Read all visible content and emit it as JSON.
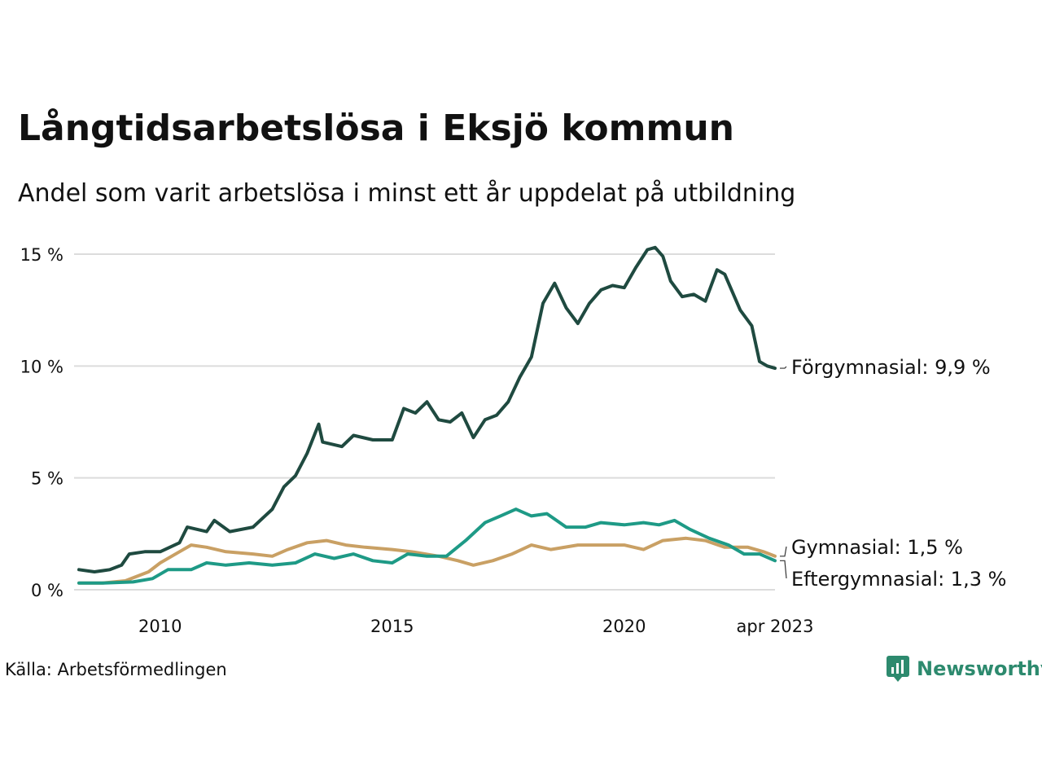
{
  "title": "Långtidsarbetslösa i Eksjö kommun",
  "subtitle": "Andel som varit arbetslösa i minst ett år uppdelat på utbildning",
  "source": "Källa: Arbetsförmedlingen",
  "brand": {
    "name": "Newsworthy",
    "icon": "newsworthy-logo-icon",
    "color": "#2d8a6e"
  },
  "chart_data": {
    "type": "line",
    "x_range": [
      "2008-04",
      "2023-04"
    ],
    "ylim": [
      0,
      15
    ],
    "grid": true,
    "y_ticks": [
      {
        "value": 0,
        "label": "0 %"
      },
      {
        "value": 5,
        "label": "5 %"
      },
      {
        "value": 10,
        "label": "10 %"
      },
      {
        "value": 15,
        "label": "15 %"
      }
    ],
    "x_ticks": [
      {
        "date": "2010-01",
        "label": "2010"
      },
      {
        "date": "2015-01",
        "label": "2015"
      },
      {
        "date": "2020-01",
        "label": "2020"
      },
      {
        "date": "2023-04",
        "label": "apr 2023"
      }
    ],
    "series": [
      {
        "name": "Förgymnasial",
        "end_label": "Förgymnasial: 9,9 %",
        "color": "#1f4a40",
        "points": [
          [
            "2008-04",
            0.9
          ],
          [
            "2008-08",
            0.8
          ],
          [
            "2008-12",
            0.9
          ],
          [
            "2009-03",
            1.1
          ],
          [
            "2009-05",
            1.6
          ],
          [
            "2009-09",
            1.7
          ],
          [
            "2010-01",
            1.7
          ],
          [
            "2010-06",
            2.1
          ],
          [
            "2010-08",
            2.8
          ],
          [
            "2011-01",
            2.6
          ],
          [
            "2011-03",
            3.1
          ],
          [
            "2011-07",
            2.6
          ],
          [
            "2012-01",
            2.8
          ],
          [
            "2012-06",
            3.6
          ],
          [
            "2012-09",
            4.6
          ],
          [
            "2012-12",
            5.1
          ],
          [
            "2013-03",
            6.1
          ],
          [
            "2013-06",
            7.4
          ],
          [
            "2013-07",
            6.6
          ],
          [
            "2013-12",
            6.4
          ],
          [
            "2014-03",
            6.9
          ],
          [
            "2014-08",
            6.7
          ],
          [
            "2015-01",
            6.7
          ],
          [
            "2015-04",
            8.1
          ],
          [
            "2015-07",
            7.9
          ],
          [
            "2015-10",
            8.4
          ],
          [
            "2016-01",
            7.6
          ],
          [
            "2016-04",
            7.5
          ],
          [
            "2016-07",
            7.9
          ],
          [
            "2016-10",
            6.8
          ],
          [
            "2017-01",
            7.6
          ],
          [
            "2017-04",
            7.8
          ],
          [
            "2017-07",
            8.4
          ],
          [
            "2017-10",
            9.5
          ],
          [
            "2018-01",
            10.4
          ],
          [
            "2018-04",
            12.8
          ],
          [
            "2018-07",
            13.7
          ],
          [
            "2018-10",
            12.6
          ],
          [
            "2019-01",
            11.9
          ],
          [
            "2019-04",
            12.8
          ],
          [
            "2019-07",
            13.4
          ],
          [
            "2019-10",
            13.6
          ],
          [
            "2020-01",
            13.5
          ],
          [
            "2020-04",
            14.4
          ],
          [
            "2020-07",
            15.2
          ],
          [
            "2020-09",
            15.3
          ],
          [
            "2020-11",
            14.9
          ],
          [
            "2021-01",
            13.8
          ],
          [
            "2021-04",
            13.1
          ],
          [
            "2021-07",
            13.2
          ],
          [
            "2021-10",
            12.9
          ],
          [
            "2022-01",
            14.3
          ],
          [
            "2022-03",
            14.1
          ],
          [
            "2022-05",
            13.3
          ],
          [
            "2022-07",
            12.5
          ],
          [
            "2022-10",
            11.8
          ],
          [
            "2022-12",
            10.2
          ],
          [
            "2023-02",
            10.0
          ],
          [
            "2023-04",
            9.9
          ]
        ]
      },
      {
        "name": "Gymnasial",
        "end_label": "Gymnasial: 1,5 %",
        "color": "#c9a064",
        "points": [
          [
            "2008-04",
            0.3
          ],
          [
            "2008-10",
            0.3
          ],
          [
            "2009-04",
            0.4
          ],
          [
            "2009-10",
            0.8
          ],
          [
            "2010-01",
            1.2
          ],
          [
            "2010-06",
            1.7
          ],
          [
            "2010-09",
            2.0
          ],
          [
            "2011-01",
            1.9
          ],
          [
            "2011-06",
            1.7
          ],
          [
            "2012-01",
            1.6
          ],
          [
            "2012-06",
            1.5
          ],
          [
            "2012-10",
            1.8
          ],
          [
            "2013-03",
            2.1
          ],
          [
            "2013-08",
            2.2
          ],
          [
            "2014-01",
            2.0
          ],
          [
            "2014-06",
            1.9
          ],
          [
            "2015-01",
            1.8
          ],
          [
            "2015-06",
            1.7
          ],
          [
            "2016-01",
            1.5
          ],
          [
            "2016-06",
            1.3
          ],
          [
            "2016-10",
            1.1
          ],
          [
            "2017-03",
            1.3
          ],
          [
            "2017-08",
            1.6
          ],
          [
            "2018-01",
            2.0
          ],
          [
            "2018-06",
            1.8
          ],
          [
            "2019-01",
            2.0
          ],
          [
            "2019-06",
            2.0
          ],
          [
            "2020-01",
            2.0
          ],
          [
            "2020-06",
            1.8
          ],
          [
            "2020-11",
            2.2
          ],
          [
            "2021-05",
            2.3
          ],
          [
            "2021-10",
            2.2
          ],
          [
            "2022-03",
            1.9
          ],
          [
            "2022-09",
            1.9
          ],
          [
            "2023-01",
            1.7
          ],
          [
            "2023-04",
            1.5
          ]
        ]
      },
      {
        "name": "Eftergymnasial",
        "end_label": "Eftergymnasial: 1,3 %",
        "color": "#1e9a86",
        "points": [
          [
            "2008-04",
            0.3
          ],
          [
            "2008-10",
            0.3
          ],
          [
            "2009-06",
            0.35
          ],
          [
            "2009-11",
            0.5
          ],
          [
            "2010-03",
            0.9
          ],
          [
            "2010-09",
            0.9
          ],
          [
            "2011-01",
            1.2
          ],
          [
            "2011-06",
            1.1
          ],
          [
            "2011-12",
            1.2
          ],
          [
            "2012-06",
            1.1
          ],
          [
            "2012-12",
            1.2
          ],
          [
            "2013-05",
            1.6
          ],
          [
            "2013-10",
            1.4
          ],
          [
            "2014-03",
            1.6
          ],
          [
            "2014-08",
            1.3
          ],
          [
            "2015-01",
            1.2
          ],
          [
            "2015-05",
            1.6
          ],
          [
            "2015-10",
            1.5
          ],
          [
            "2016-03",
            1.5
          ],
          [
            "2016-08",
            2.2
          ],
          [
            "2017-01",
            3.0
          ],
          [
            "2017-05",
            3.3
          ],
          [
            "2017-09",
            3.6
          ],
          [
            "2018-01",
            3.3
          ],
          [
            "2018-05",
            3.4
          ],
          [
            "2018-10",
            2.8
          ],
          [
            "2019-03",
            2.8
          ],
          [
            "2019-07",
            3.0
          ],
          [
            "2020-01",
            2.9
          ],
          [
            "2020-06",
            3.0
          ],
          [
            "2020-10",
            2.9
          ],
          [
            "2021-02",
            3.1
          ],
          [
            "2021-06",
            2.7
          ],
          [
            "2021-11",
            2.3
          ],
          [
            "2022-04",
            2.0
          ],
          [
            "2022-08",
            1.6
          ],
          [
            "2022-12",
            1.6
          ],
          [
            "2023-04",
            1.3
          ]
        ]
      }
    ]
  }
}
